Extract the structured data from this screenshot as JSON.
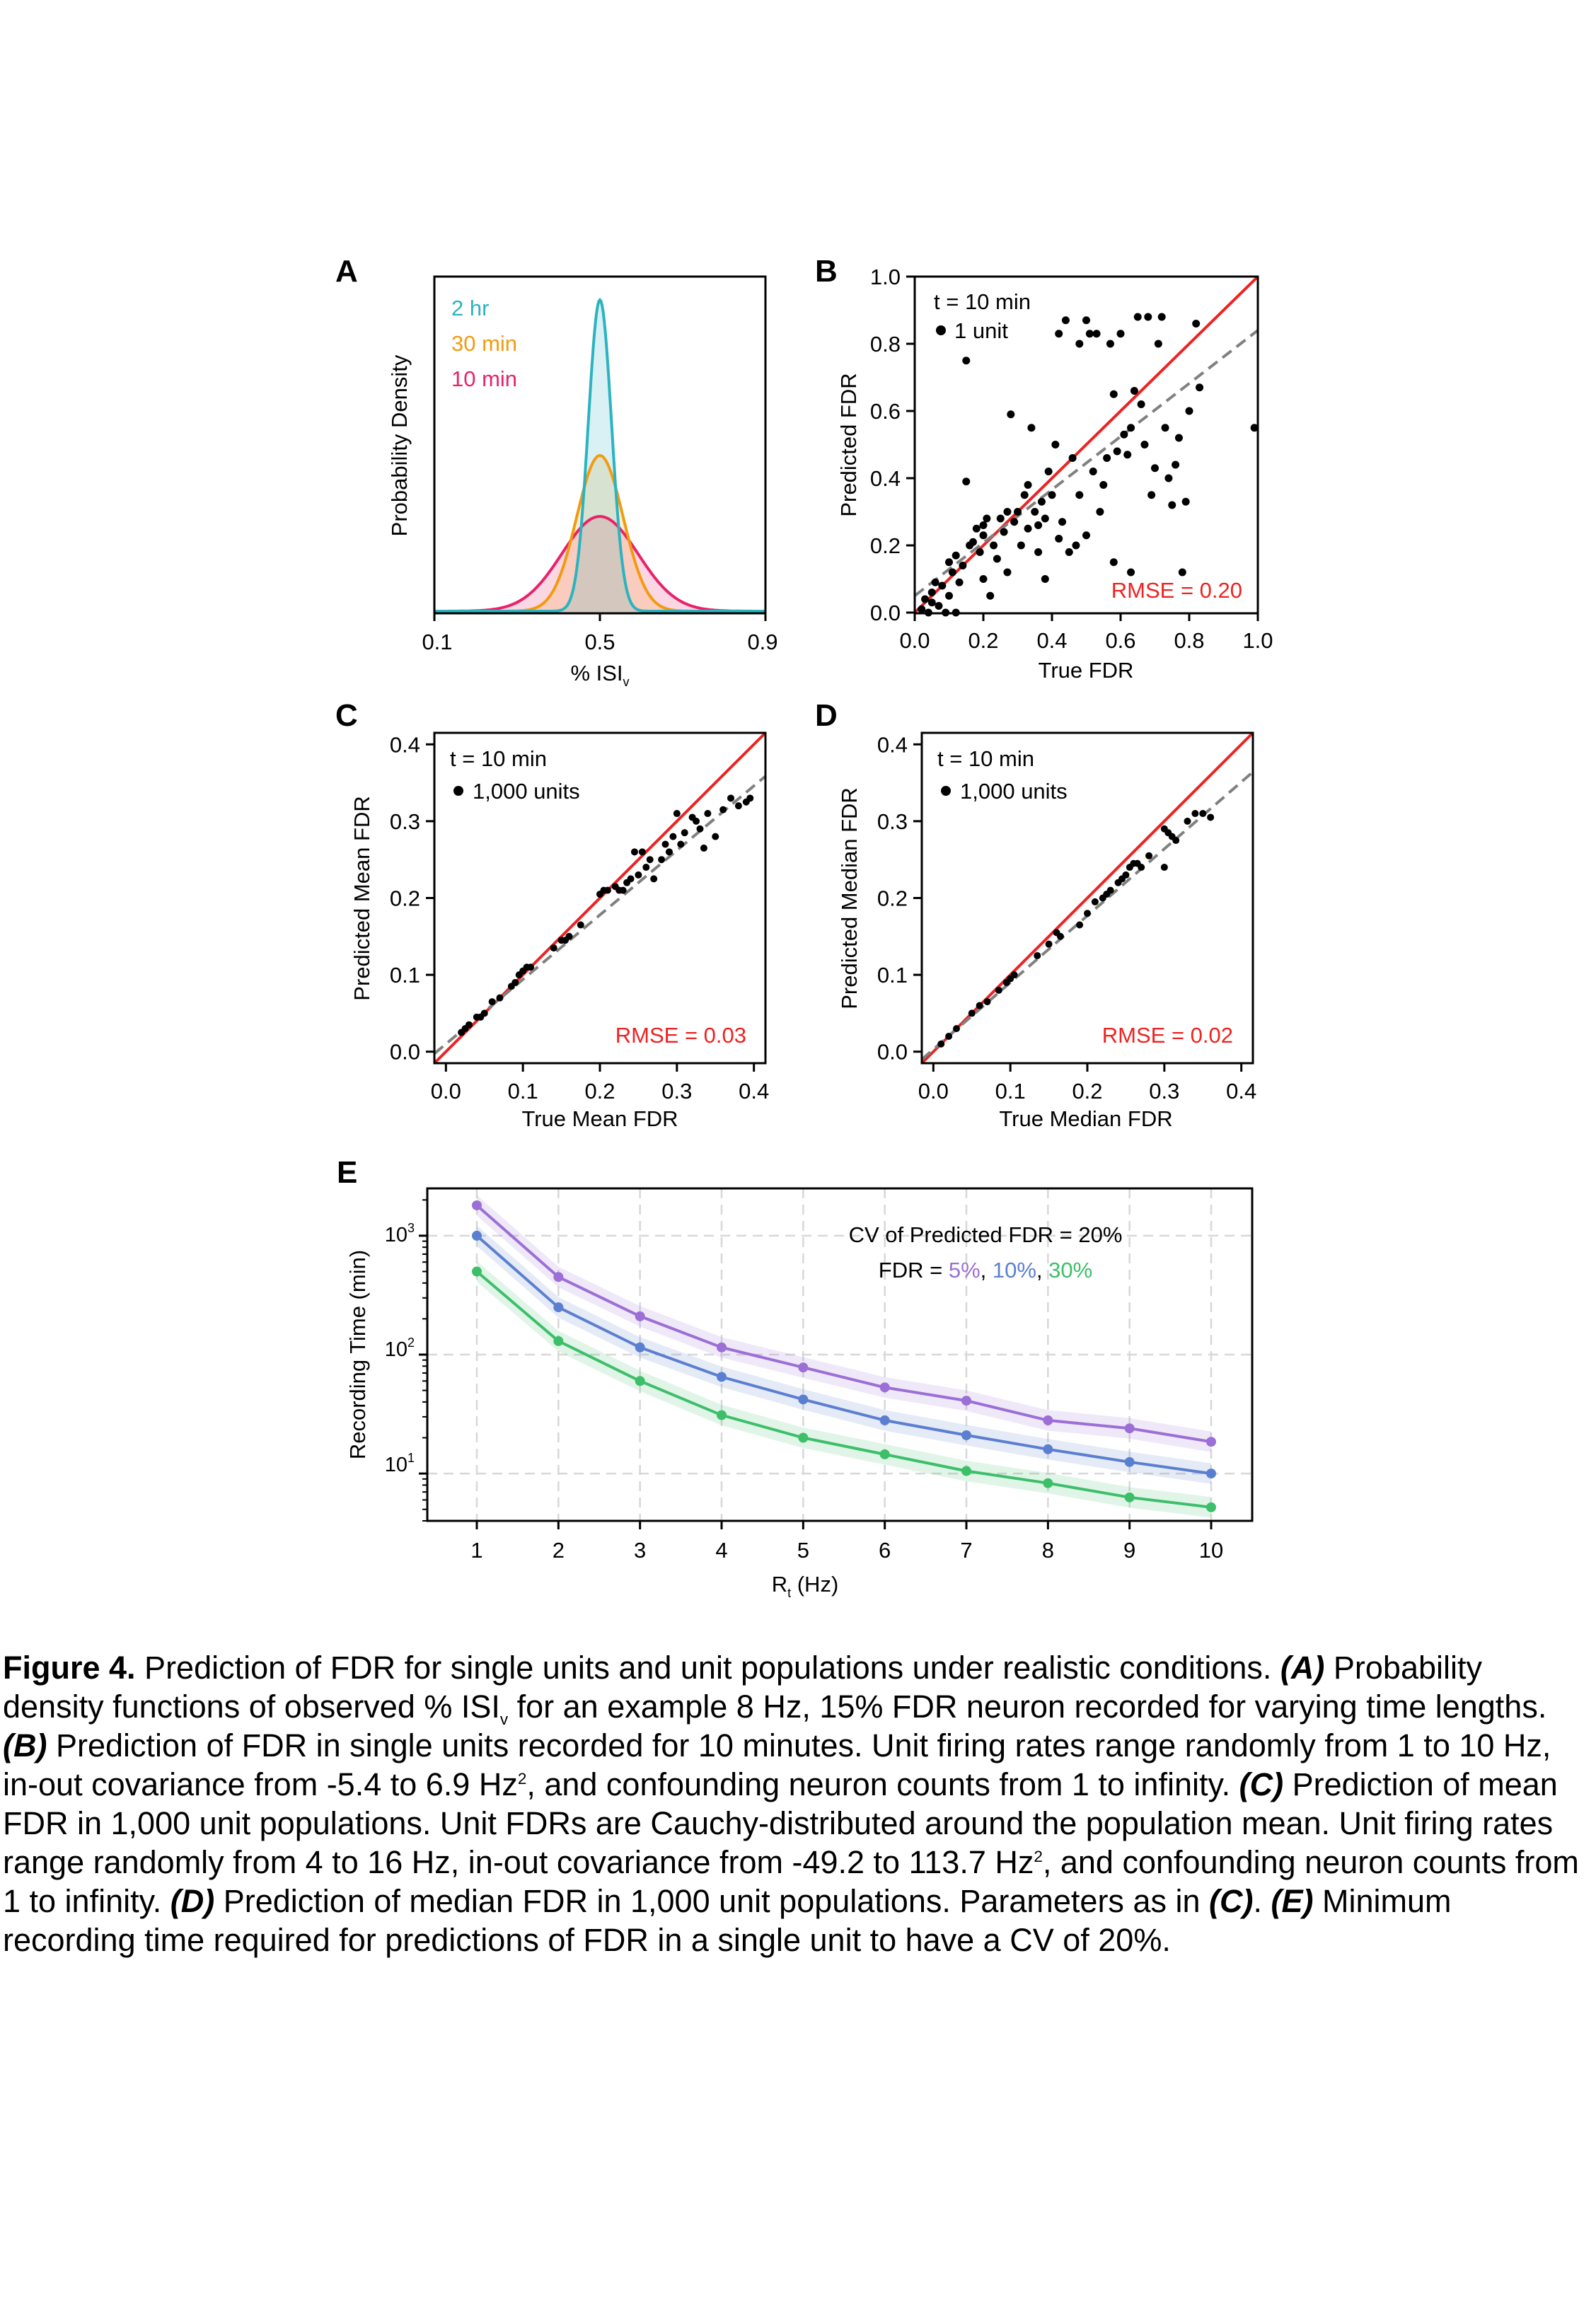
{
  "panels": {
    "A": {
      "letter": "A",
      "ylabel": "Probability Density",
      "xlabel_main": "% ISI",
      "xlabel_sub": "v",
      "xticks": [
        "0.1",
        "0.5",
        "0.9"
      ],
      "legend": [
        {
          "label": "2 hr",
          "color": "#2bb3c0"
        },
        {
          "label": "30 min",
          "color": "#f29b11"
        },
        {
          "label": "10 min",
          "color": "#e8226b"
        }
      ]
    },
    "B": {
      "letter": "B",
      "xlabel": "True FDR",
      "ylabel": "Predicted FDR",
      "xticks": [
        "0.0",
        "0.2",
        "0.4",
        "0.6",
        "0.8",
        "1.0"
      ],
      "yticks": [
        "0.0",
        "0.2",
        "0.4",
        "0.6",
        "0.8",
        "1.0"
      ],
      "legend_title": "t = 10 min",
      "legend_item": "1 unit",
      "rmse": "RMSE = 0.20"
    },
    "C": {
      "letter": "C",
      "xlabel": "True Mean FDR",
      "ylabel": "Predicted Mean FDR",
      "xticks": [
        "0.0",
        "0.1",
        "0.2",
        "0.3",
        "0.4"
      ],
      "yticks": [
        "0.0",
        "0.1",
        "0.2",
        "0.3",
        "0.4"
      ],
      "legend_title": "t = 10 min",
      "legend_item": "1,000 units",
      "rmse": "RMSE = 0.03"
    },
    "D": {
      "letter": "D",
      "xlabel": "True Median FDR",
      "ylabel": "Predicted Median FDR",
      "xticks": [
        "0.0",
        "0.1",
        "0.2",
        "0.3",
        "0.4"
      ],
      "yticks": [
        "0.0",
        "0.1",
        "0.2",
        "0.3",
        "0.4"
      ],
      "legend_title": "t = 10 min",
      "legend_item": "1,000 units",
      "rmse": "RMSE = 0.02"
    },
    "E": {
      "letter": "E",
      "ylabel": "Recording Time (min)",
      "xlabel_main": "R",
      "xlabel_sub": "t",
      "xlabel_unit": " (Hz)",
      "xticks": [
        "1",
        "2",
        "3",
        "4",
        "5",
        "6",
        "7",
        "8",
        "9",
        "10"
      ],
      "yticks": [
        {
          "base": "10",
          "exp": "1"
        },
        {
          "base": "10",
          "exp": "2"
        },
        {
          "base": "10",
          "exp": "3"
        }
      ],
      "annotation_line1": "CV of Predicted FDR = 20%",
      "annotation_prefix": "FDR = ",
      "annotation_items": [
        {
          "label": "5%",
          "color": "#9b6fd6"
        },
        {
          "label": "10%",
          "color": "#5b7fd0"
        },
        {
          "label": "30%",
          "color": "#3dbf6a"
        }
      ]
    }
  },
  "chart_data": [
    {
      "panel": "A",
      "type": "area",
      "xlabel": "% ISIv",
      "ylabel": "Probability Density",
      "xlim": [
        0.1,
        0.9
      ],
      "series": [
        {
          "name": "2 hr",
          "mean": 0.5,
          "sd": 0.028,
          "color": "#2bb3c0"
        },
        {
          "name": "30 min",
          "mean": 0.5,
          "sd": 0.056,
          "color": "#f29b11"
        },
        {
          "name": "10 min",
          "mean": 0.5,
          "sd": 0.092,
          "color": "#e8226b"
        }
      ]
    },
    {
      "panel": "B",
      "type": "scatter",
      "xlabel": "True FDR",
      "ylabel": "Predicted FDR",
      "xlim": [
        0,
        1
      ],
      "ylim": [
        0,
        1
      ],
      "identity_line_color": "#ee2222",
      "fit_line": {
        "slope": 0.79,
        "intercept": 0.05
      },
      "points": [
        [
          0.02,
          0.01
        ],
        [
          0.03,
          0.04
        ],
        [
          0.04,
          0.0
        ],
        [
          0.05,
          0.06
        ],
        [
          0.06,
          0.09
        ],
        [
          0.07,
          0.02
        ],
        [
          0.08,
          0.08
        ],
        [
          0.09,
          0.0
        ],
        [
          0.1,
          0.05
        ],
        [
          0.1,
          0.15
        ],
        [
          0.11,
          0.12
        ],
        [
          0.12,
          0.17
        ],
        [
          0.13,
          0.09
        ],
        [
          0.14,
          0.14
        ],
        [
          0.15,
          0.39
        ],
        [
          0.15,
          0.75
        ],
        [
          0.16,
          0.2
        ],
        [
          0.17,
          0.21
        ],
        [
          0.18,
          0.25
        ],
        [
          0.19,
          0.18
        ],
        [
          0.2,
          0.23
        ],
        [
          0.2,
          0.1
        ],
        [
          0.21,
          0.28
        ],
        [
          0.22,
          0.05
        ],
        [
          0.23,
          0.2
        ],
        [
          0.24,
          0.16
        ],
        [
          0.25,
          0.28
        ],
        [
          0.26,
          0.24
        ],
        [
          0.27,
          0.3
        ],
        [
          0.27,
          0.12
        ],
        [
          0.28,
          0.59
        ],
        [
          0.29,
          0.27
        ],
        [
          0.3,
          0.3
        ],
        [
          0.31,
          0.2
        ],
        [
          0.32,
          0.35
        ],
        [
          0.33,
          0.25
        ],
        [
          0.33,
          0.38
        ],
        [
          0.34,
          0.55
        ],
        [
          0.35,
          0.3
        ],
        [
          0.36,
          0.26
        ],
        [
          0.36,
          0.18
        ],
        [
          0.37,
          0.33
        ],
        [
          0.38,
          0.28
        ],
        [
          0.38,
          0.1
        ],
        [
          0.39,
          0.42
        ],
        [
          0.4,
          0.35
        ],
        [
          0.41,
          0.5
        ],
        [
          0.42,
          0.22
        ],
        [
          0.42,
          0.83
        ],
        [
          0.43,
          0.27
        ],
        [
          0.44,
          0.87
        ],
        [
          0.45,
          0.18
        ],
        [
          0.46,
          0.46
        ],
        [
          0.47,
          0.2
        ],
        [
          0.48,
          0.35
        ],
        [
          0.48,
          0.8
        ],
        [
          0.5,
          0.87
        ],
        [
          0.5,
          0.23
        ],
        [
          0.51,
          0.83
        ],
        [
          0.52,
          0.42
        ],
        [
          0.53,
          0.83
        ],
        [
          0.54,
          0.3
        ],
        [
          0.55,
          0.38
        ],
        [
          0.56,
          0.46
        ],
        [
          0.57,
          0.8
        ],
        [
          0.58,
          0.65
        ],
        [
          0.58,
          0.15
        ],
        [
          0.59,
          0.48
        ],
        [
          0.6,
          0.83
        ],
        [
          0.61,
          0.53
        ],
        [
          0.62,
          0.47
        ],
        [
          0.63,
          0.55
        ],
        [
          0.64,
          0.66
        ],
        [
          0.65,
          0.88
        ],
        [
          0.66,
          0.62
        ],
        [
          0.67,
          0.5
        ],
        [
          0.68,
          0.88
        ],
        [
          0.69,
          0.35
        ],
        [
          0.7,
          0.43
        ],
        [
          0.71,
          0.8
        ],
        [
          0.72,
          0.88
        ],
        [
          0.73,
          0.55
        ],
        [
          0.74,
          0.4
        ],
        [
          0.75,
          0.32
        ],
        [
          0.76,
          0.44
        ],
        [
          0.77,
          0.52
        ],
        [
          0.78,
          0.12
        ],
        [
          0.79,
          0.33
        ],
        [
          0.8,
          0.6
        ],
        [
          0.82,
          0.86
        ],
        [
          0.83,
          0.67
        ],
        [
          0.99,
          0.55
        ],
        [
          0.05,
          0.03
        ],
        [
          0.12,
          0.0
        ],
        [
          0.63,
          0.12
        ],
        [
          0.2,
          0.26
        ]
      ]
    },
    {
      "panel": "C",
      "type": "scatter",
      "xlabel": "True Mean FDR",
      "ylabel": "Predicted Mean FDR",
      "xlim": [
        -0.015,
        0.415
      ],
      "ylim": [
        -0.015,
        0.415
      ],
      "identity_line_color": "#ee2222",
      "fit_line": {
        "slope": 0.84,
        "intercept": 0.01
      },
      "points": [
        [
          0.02,
          0.025
        ],
        [
          0.025,
          0.03
        ],
        [
          0.03,
          0.035
        ],
        [
          0.04,
          0.045
        ],
        [
          0.045,
          0.045
        ],
        [
          0.05,
          0.05
        ],
        [
          0.06,
          0.065
        ],
        [
          0.07,
          0.07
        ],
        [
          0.085,
          0.085
        ],
        [
          0.09,
          0.09
        ],
        [
          0.095,
          0.1
        ],
        [
          0.1,
          0.105
        ],
        [
          0.105,
          0.11
        ],
        [
          0.11,
          0.11
        ],
        [
          0.14,
          0.135
        ],
        [
          0.15,
          0.145
        ],
        [
          0.155,
          0.145
        ],
        [
          0.16,
          0.15
        ],
        [
          0.175,
          0.165
        ],
        [
          0.2,
          0.205
        ],
        [
          0.205,
          0.21
        ],
        [
          0.21,
          0.21
        ],
        [
          0.22,
          0.215
        ],
        [
          0.225,
          0.21
        ],
        [
          0.23,
          0.21
        ],
        [
          0.235,
          0.22
        ],
        [
          0.24,
          0.225
        ],
        [
          0.245,
          0.26
        ],
        [
          0.25,
          0.23
        ],
        [
          0.255,
          0.26
        ],
        [
          0.26,
          0.24
        ],
        [
          0.265,
          0.25
        ],
        [
          0.27,
          0.225
        ],
        [
          0.28,
          0.25
        ],
        [
          0.285,
          0.27
        ],
        [
          0.29,
          0.26
        ],
        [
          0.295,
          0.28
        ],
        [
          0.3,
          0.31
        ],
        [
          0.305,
          0.27
        ],
        [
          0.31,
          0.285
        ],
        [
          0.32,
          0.305
        ],
        [
          0.325,
          0.3
        ],
        [
          0.33,
          0.29
        ],
        [
          0.34,
          0.31
        ],
        [
          0.35,
          0.28
        ],
        [
          0.36,
          0.315
        ],
        [
          0.37,
          0.33
        ],
        [
          0.38,
          0.32
        ],
        [
          0.39,
          0.325
        ],
        [
          0.395,
          0.33
        ],
        [
          0.335,
          0.265
        ]
      ]
    },
    {
      "panel": "D",
      "type": "scatter",
      "xlabel": "True Median FDR",
      "ylabel": "Predicted Median FDR",
      "xlim": [
        -0.015,
        0.415
      ],
      "ylim": [
        -0.015,
        0.415
      ],
      "identity_line_color": "#ee2222",
      "fit_line": {
        "slope": 0.87,
        "intercept": 0.003
      },
      "points": [
        [
          0.01,
          0.01
        ],
        [
          0.02,
          0.02
        ],
        [
          0.03,
          0.03
        ],
        [
          0.05,
          0.05
        ],
        [
          0.06,
          0.06
        ],
        [
          0.07,
          0.065
        ],
        [
          0.085,
          0.08
        ],
        [
          0.095,
          0.09
        ],
        [
          0.1,
          0.095
        ],
        [
          0.105,
          0.1
        ],
        [
          0.135,
          0.125
        ],
        [
          0.15,
          0.14
        ],
        [
          0.16,
          0.155
        ],
        [
          0.165,
          0.15
        ],
        [
          0.19,
          0.165
        ],
        [
          0.2,
          0.18
        ],
        [
          0.21,
          0.195
        ],
        [
          0.22,
          0.2
        ],
        [
          0.225,
          0.205
        ],
        [
          0.23,
          0.21
        ],
        [
          0.24,
          0.22
        ],
        [
          0.245,
          0.225
        ],
        [
          0.25,
          0.23
        ],
        [
          0.255,
          0.24
        ],
        [
          0.26,
          0.245
        ],
        [
          0.265,
          0.245
        ],
        [
          0.27,
          0.24
        ],
        [
          0.28,
          0.255
        ],
        [
          0.3,
          0.29
        ],
        [
          0.305,
          0.285
        ],
        [
          0.31,
          0.28
        ],
        [
          0.315,
          0.275
        ],
        [
          0.33,
          0.3
        ],
        [
          0.34,
          0.31
        ],
        [
          0.35,
          0.31
        ],
        [
          0.36,
          0.305
        ],
        [
          0.3,
          0.24
        ]
      ]
    },
    {
      "panel": "E",
      "type": "line",
      "xlabel": "Rt (Hz)",
      "ylabel": "Recording Time (min)",
      "yscale": "log",
      "ylim": [
        4,
        2500
      ],
      "x": [
        1,
        2,
        3,
        4,
        5,
        6,
        7,
        8,
        9,
        10
      ],
      "grid": true,
      "series": [
        {
          "name": "5%",
          "color": "#9b6fd6",
          "values": [
            1800,
            450,
            210,
            115,
            78,
            53,
            41,
            28,
            24,
            18.5
          ]
        },
        {
          "name": "10%",
          "color": "#5b7fd0",
          "values": [
            1000,
            250,
            115,
            65,
            42,
            28,
            21,
            16,
            12.5,
            10
          ]
        },
        {
          "name": "30%",
          "color": "#3dbf6a",
          "values": [
            500,
            130,
            60,
            31,
            20,
            14.5,
            10.5,
            8.3,
            6.3,
            5.2
          ]
        }
      ]
    }
  ],
  "caption": {
    "figure_label": "Figure 4.",
    "t1": " Prediction of FDR for single units and unit populations under realistic conditions. ",
    "A_label": "(A)",
    "t2": " Probability density functions of observed % ISI",
    "t2_sub": "v",
    "t3": " for an example 8 Hz, 15% FDR neuron recorded for varying time lengths. ",
    "B_label": "(B)",
    "t4": " Prediction of FDR in single units recorded for 10 minutes. Unit firing rates range randomly from 1 to 10 Hz, in-out covariance from -5.4 to 6.9 Hz",
    "t4_sup": "2",
    "t5": ", and confounding neuron counts from 1 to infinity. ",
    "C_label": "(C)",
    "t6": " Prediction of mean FDR in 1,000 unit populations. Unit FDRs are Cauchy-distributed around the population mean. Unit firing rates range randomly from 4 to 16 Hz, in-out covariance from -49.2 to 113.7 Hz",
    "t6_sup": "2",
    "t7": ", and confounding neuron counts from 1 to infinity. ",
    "D_label": "(D)",
    "t8": " Prediction of median FDR in 1,000 unit populations. Parameters as in ",
    "C_ref": "(C)",
    "t9": ". ",
    "E_label": "(E)",
    "t10": " Minimum recording time required for predictions of FDR in a single unit to have a CV of 20%."
  }
}
